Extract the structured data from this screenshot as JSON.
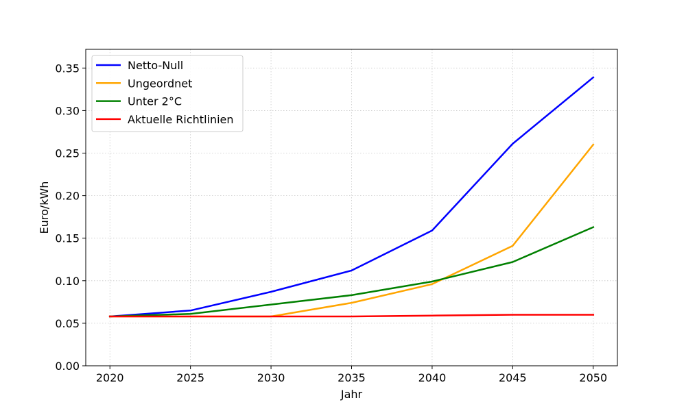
{
  "chart_data": {
    "type": "line",
    "title": "",
    "xlabel": "Jahr",
    "ylabel": "Euro/kWh",
    "x": [
      2020,
      2025,
      2030,
      2035,
      2040,
      2045,
      2050
    ],
    "xticks": [
      2020,
      2025,
      2030,
      2035,
      2040,
      2045,
      2050
    ],
    "xlim": [
      2018.5,
      2051.5
    ],
    "yticks": [
      0.0,
      0.05,
      0.1,
      0.15,
      0.2,
      0.25,
      0.3,
      0.35
    ],
    "ytick_labels": [
      "0.00",
      "0.05",
      "0.10",
      "0.15",
      "0.20",
      "0.25",
      "0.30",
      "0.35"
    ],
    "ylim": [
      0,
      0.372
    ],
    "grid": true,
    "legend_position": "top-left",
    "series": [
      {
        "name": "Netto-Null",
        "color": "#0000ff",
        "values": [
          0.058,
          0.065,
          0.087,
          0.112,
          0.159,
          0.261,
          0.339
        ]
      },
      {
        "name": "Ungeordnet",
        "color": "#ffa500",
        "values": [
          0.058,
          0.058,
          0.058,
          0.074,
          0.096,
          0.141,
          0.26
        ]
      },
      {
        "name": "Unter 2°C",
        "color": "#008000",
        "values": [
          0.058,
          0.061,
          0.072,
          0.083,
          0.099,
          0.122,
          0.163
        ]
      },
      {
        "name": "Aktuelle Richtlinien",
        "color": "#ff0000",
        "values": [
          0.058,
          0.058,
          0.058,
          0.058,
          0.059,
          0.06,
          0.06
        ]
      }
    ]
  }
}
